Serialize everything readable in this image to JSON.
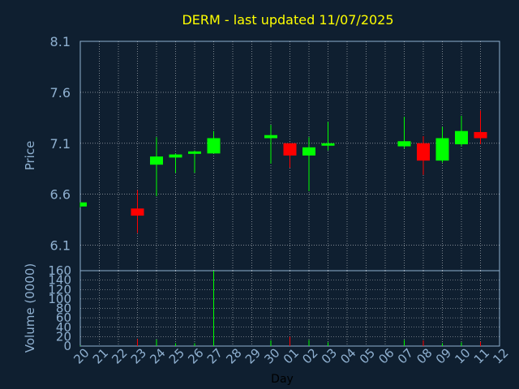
{
  "chart_data": {
    "type": "candlestick",
    "title": "DERM - last updated 11/07/2025",
    "xlabel": "Day",
    "ylabel_price": "Price",
    "ylabel_volume": "Volume (0000)",
    "price_ticks": [
      "8.1",
      "7.6",
      "7.1",
      "6.6",
      "6.1"
    ],
    "price_range": [
      5.85,
      8.1
    ],
    "volume_ticks": [
      "160",
      "140",
      "120",
      "100",
      "80",
      "60",
      "40",
      "20",
      "0"
    ],
    "volume_range": [
      0,
      160
    ],
    "x_labels": [
      "20",
      "21",
      "22",
      "23",
      "24",
      "25",
      "26",
      "27",
      "28",
      "29",
      "30",
      "01",
      "02",
      "03",
      "04",
      "05",
      "06",
      "07",
      "08",
      "09",
      "10",
      "11",
      "12"
    ],
    "grid": true,
    "colors": {
      "background": "#0f1f30",
      "title": "#ffff00",
      "axis_text": "#8fb0d0",
      "up": "#00ff00",
      "down": "#ff0000",
      "grid": "#ffffff"
    },
    "candles": [
      {
        "day": "20",
        "open": 6.48,
        "high": 6.52,
        "low": 6.47,
        "close": 6.52
      },
      {
        "day": "23",
        "open": 6.46,
        "high": 6.64,
        "low": 6.22,
        "close": 6.39
      },
      {
        "day": "24",
        "open": 6.89,
        "high": 7.16,
        "low": 6.58,
        "close": 6.97
      },
      {
        "day": "25",
        "open": 6.96,
        "high": 7.0,
        "low": 6.81,
        "close": 6.99
      },
      {
        "day": "26",
        "open": 7.01,
        "high": 7.03,
        "low": 6.81,
        "close": 7.02
      },
      {
        "day": "27",
        "open": 7.0,
        "high": 7.22,
        "low": 7.0,
        "close": 7.15
      },
      {
        "day": "30",
        "open": 7.15,
        "high": 7.28,
        "low": 6.9,
        "close": 7.18
      },
      {
        "day": "01",
        "open": 7.1,
        "high": 7.1,
        "low": 6.86,
        "close": 6.98
      },
      {
        "day": "02",
        "open": 6.98,
        "high": 7.16,
        "low": 6.63,
        "close": 7.06
      },
      {
        "day": "03",
        "open": 7.09,
        "high": 7.31,
        "low": 7.03,
        "close": 7.1
      },
      {
        "day": "07",
        "open": 7.07,
        "high": 7.36,
        "low": 7.05,
        "close": 7.12
      },
      {
        "day": "08",
        "open": 7.1,
        "high": 7.17,
        "low": 6.79,
        "close": 6.93
      },
      {
        "day": "09",
        "open": 6.93,
        "high": 7.26,
        "low": 6.91,
        "close": 7.15
      },
      {
        "day": "10",
        "open": 7.09,
        "high": 7.37,
        "low": 7.07,
        "close": 7.22
      },
      {
        "day": "11",
        "open": 7.21,
        "high": 7.42,
        "low": 7.09,
        "close": 7.15
      }
    ],
    "volumes": [
      {
        "day": "20",
        "value": 1,
        "dir": "up"
      },
      {
        "day": "23",
        "value": 15,
        "dir": "down"
      },
      {
        "day": "24",
        "value": 14,
        "dir": "up"
      },
      {
        "day": "25",
        "value": 6,
        "dir": "up"
      },
      {
        "day": "26",
        "value": 6,
        "dir": "up"
      },
      {
        "day": "27",
        "value": 160,
        "dir": "up"
      },
      {
        "day": "30",
        "value": 12,
        "dir": "up"
      },
      {
        "day": "01",
        "value": 20,
        "dir": "down"
      },
      {
        "day": "02",
        "value": 13,
        "dir": "up"
      },
      {
        "day": "03",
        "value": 8,
        "dir": "up"
      },
      {
        "day": "07",
        "value": 13,
        "dir": "up"
      },
      {
        "day": "08",
        "value": 12,
        "dir": "down"
      },
      {
        "day": "09",
        "value": 6,
        "dir": "up"
      },
      {
        "day": "10",
        "value": 8,
        "dir": "up"
      },
      {
        "day": "11",
        "value": 9,
        "dir": "down"
      }
    ]
  }
}
